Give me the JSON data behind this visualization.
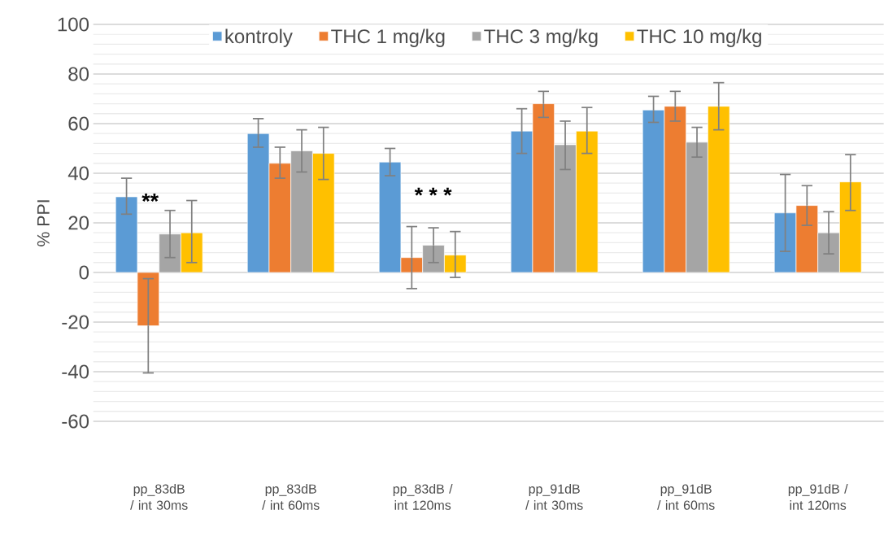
{
  "chart_data": {
    "type": "bar",
    "ylabel": "% PPI",
    "categories": [
      "pp_83dB / int 30ms",
      "pp_83dB / int 60ms",
      "pp_83dB / int 120ms",
      "pp_91dB / int 30ms",
      "pp_91dB / int 60ms",
      "pp_91dB / int 120ms"
    ],
    "series": [
      {
        "name": "kontroly",
        "color": "#5b9bd5",
        "values": [
          30.5,
          56,
          44.5,
          57,
          65.5,
          24
        ],
        "errors": [
          [
            23.5,
            38
          ],
          [
            50.5,
            62
          ],
          [
            39,
            50
          ],
          [
            48,
            66
          ],
          [
            60.5,
            71
          ],
          [
            8.5,
            39.5
          ]
        ]
      },
      {
        "name": "THC 1 mg/kg",
        "color": "#ed7d31",
        "values": [
          -21.5,
          44,
          6,
          68,
          67,
          27
        ],
        "errors": [
          [
            -40.5,
            -2.5
          ],
          [
            38,
            50.5
          ],
          [
            -6.5,
            18.5
          ],
          [
            62.5,
            73
          ],
          [
            61,
            73
          ],
          [
            19,
            35
          ]
        ]
      },
      {
        "name": "THC 3 mg/kg",
        "color": "#a5a5a5",
        "values": [
          15.5,
          49,
          11,
          51.5,
          52.5,
          16
        ],
        "errors": [
          [
            6,
            25
          ],
          [
            40.5,
            57.5
          ],
          [
            4,
            18
          ],
          [
            41.5,
            61
          ],
          [
            46.5,
            58.5
          ],
          [
            7.5,
            24.5
          ]
        ]
      },
      {
        "name": "THC 10 mg/kg",
        "color": "#ffc000",
        "values": [
          16,
          48,
          7,
          57,
          67,
          36.5
        ],
        "errors": [
          [
            4,
            29
          ],
          [
            37.5,
            58.5
          ],
          [
            -2,
            16.5
          ],
          [
            48,
            66.5
          ],
          [
            57.5,
            76.5
          ],
          [
            25,
            47.5
          ]
        ]
      }
    ],
    "ylim": [
      -60,
      100
    ],
    "yticks": [
      -60,
      -40,
      -20,
      0,
      20,
      40,
      60,
      80,
      100
    ],
    "grid": "y",
    "legend": "top",
    "annotations": [
      "**",
      "* * *"
    ]
  }
}
